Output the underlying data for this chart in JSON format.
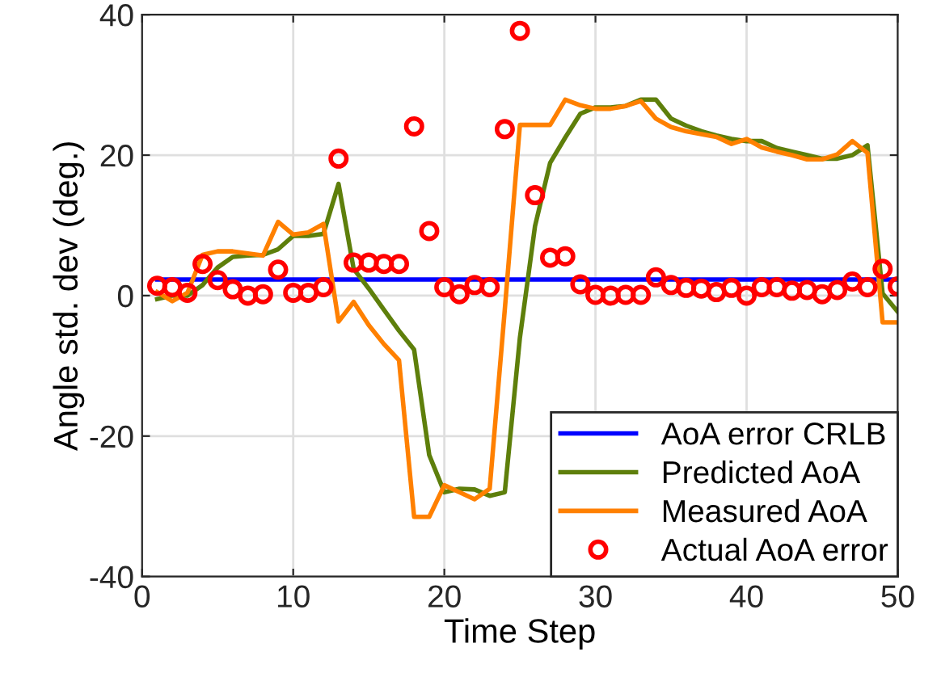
{
  "chart_data": {
    "type": "line",
    "xlabel": "Time Step",
    "ylabel": "Angle std. dev (deg.)",
    "x": [
      1,
      2,
      3,
      4,
      5,
      6,
      7,
      8,
      9,
      10,
      11,
      12,
      13,
      14,
      15,
      16,
      17,
      18,
      19,
      20,
      21,
      22,
      23,
      24,
      25,
      26,
      27,
      28,
      29,
      30,
      31,
      32,
      33,
      34,
      35,
      36,
      37,
      38,
      39,
      40,
      41,
      42,
      43,
      44,
      45,
      46,
      47,
      48,
      49,
      50
    ],
    "series": [
      {
        "name": "AoA error CRLB",
        "color": "#0000ff",
        "values": [
          2.3,
          2.3,
          2.3,
          2.3,
          2.3,
          2.3,
          2.3,
          2.3,
          2.3,
          2.3,
          2.3,
          2.3,
          2.3,
          2.3,
          2.3,
          2.3,
          2.3,
          2.3,
          2.3,
          2.3,
          2.3,
          2.3,
          2.3,
          2.3,
          2.3,
          2.3,
          2.3,
          2.3,
          2.3,
          2.3,
          2.3,
          2.3,
          2.3,
          2.3,
          2.3,
          2.3,
          2.3,
          2.3,
          2.3,
          2.3,
          2.3,
          2.3,
          2.3,
          2.3,
          2.3,
          2.3,
          2.3,
          2.3,
          2.3,
          2.3
        ]
      },
      {
        "name": "Predicted AoA",
        "color": "#5e7f0b",
        "values": [
          -0.5,
          0,
          0,
          1.5,
          4,
          5.5,
          5.7,
          5.8,
          6.6,
          8.5,
          8.5,
          8.8,
          15.9,
          3.8,
          1,
          -2,
          -5,
          -7.7,
          -22.7,
          -28,
          -27.5,
          -27.6,
          -28.5,
          -28,
          -6,
          9.9,
          18.9,
          22.5,
          25.9,
          26.8,
          26.8,
          27,
          27.9,
          27.9,
          25.2,
          24.2,
          23.4,
          22.8,
          22.3,
          22,
          22,
          21,
          20.5,
          20,
          19.5,
          19.5,
          20,
          21.4,
          0.3,
          -2.3
        ]
      },
      {
        "name": "Measured AoA",
        "color": "#ff8000",
        "values": [
          0.5,
          -0.8,
          0.4,
          5.8,
          6.3,
          6.3,
          6,
          5.7,
          10.5,
          8.7,
          9,
          10.2,
          -3.7,
          -0.9,
          -4.2,
          -6.9,
          -9.2,
          -31.5,
          -31.5,
          -27,
          -28,
          -29,
          -27.5,
          -2,
          24.3,
          24.3,
          24.3,
          27.9,
          27.1,
          26.6,
          26.6,
          27,
          27.7,
          25.2,
          24,
          23.4,
          23,
          22.6,
          21.6,
          22.3,
          21.1,
          20.5,
          20,
          19.4,
          19.4,
          20.1,
          22,
          20.3,
          -3.8,
          -3.8
        ]
      },
      {
        "name": "Actual AoA error",
        "color": "#ff0000",
        "type": "scatter",
        "marker": "circle",
        "values": [
          1.4,
          1.2,
          0.4,
          4.5,
          2.2,
          0.9,
          0,
          0.2,
          3.7,
          0.4,
          0.4,
          1.2,
          19.5,
          4.7,
          4.7,
          4.5,
          4.5,
          24.1,
          9.2,
          1.2,
          0.2,
          1.5,
          1.2,
          23.7,
          37.7,
          14.3,
          5.4,
          5.6,
          1.6,
          0.1,
          0,
          0.1,
          0.1,
          2.6,
          1.5,
          1.1,
          1,
          0.5,
          1.1,
          0,
          1.2,
          1.2,
          0.7,
          0.8,
          0.2,
          0.8,
          2,
          1.2,
          3.8,
          1.3
        ]
      }
    ],
    "xlim": [
      0,
      50
    ],
    "xticks": [
      0,
      10,
      20,
      30,
      40,
      50
    ],
    "ylim": [
      -40,
      40
    ],
    "yticks": [
      -40,
      -20,
      0,
      20,
      40
    ],
    "grid": true,
    "legend": "bottom right"
  }
}
